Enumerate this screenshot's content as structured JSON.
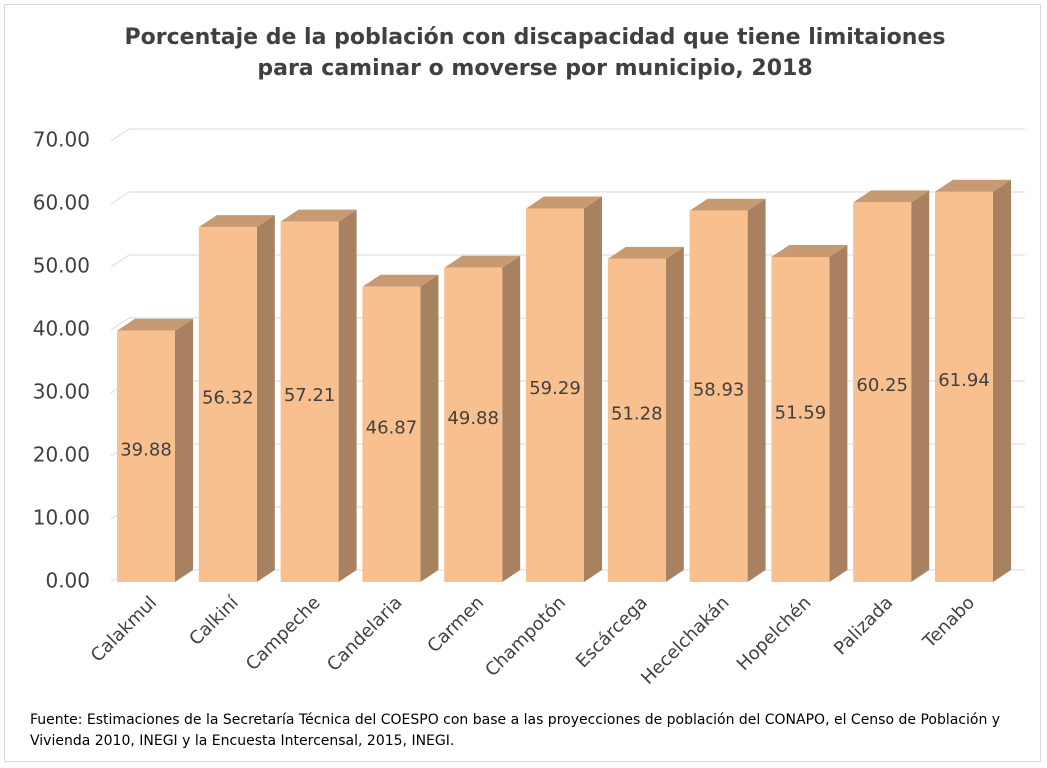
{
  "chart_data": {
    "type": "bar3d",
    "title": "Porcentaje de la población con discapacidad  que tiene limitaiones para caminar o moverse por municipio, 2018",
    "categories": [
      "Calakmul",
      "Calkiní",
      "Campeche",
      "Candelaria",
      "Carmen",
      "Champotón",
      "Escárcega",
      "Hecelchakán",
      "Hopelchén",
      "Palizada",
      "Tenabo"
    ],
    "values": [
      39.88,
      56.32,
      57.21,
      46.87,
      49.88,
      59.29,
      51.28,
      58.93,
      51.59,
      60.25,
      61.94
    ],
    "color": "#f9c08f",
    "ylim": [
      0,
      70
    ],
    "yticks": [
      {
        "value": 0,
        "label": "0.00"
      },
      {
        "value": 10,
        "label": "10.00"
      },
      {
        "value": 20,
        "label": "20.00"
      },
      {
        "value": 30,
        "label": "30.00"
      },
      {
        "value": 40,
        "label": "40.00"
      },
      {
        "value": 50,
        "label": "50.00"
      },
      {
        "value": 60,
        "label": "60.00"
      },
      {
        "value": 70,
        "label": "70.00"
      }
    ],
    "grid": true,
    "source": "Fuente: Estimaciones de la Secretaría Técnica del COESPO con base a las proyecciones de población del CONAPO, el Censo de Población y Vivienda 2010, INEGI y la Encuesta Intercensal, 2015, INEGI."
  }
}
